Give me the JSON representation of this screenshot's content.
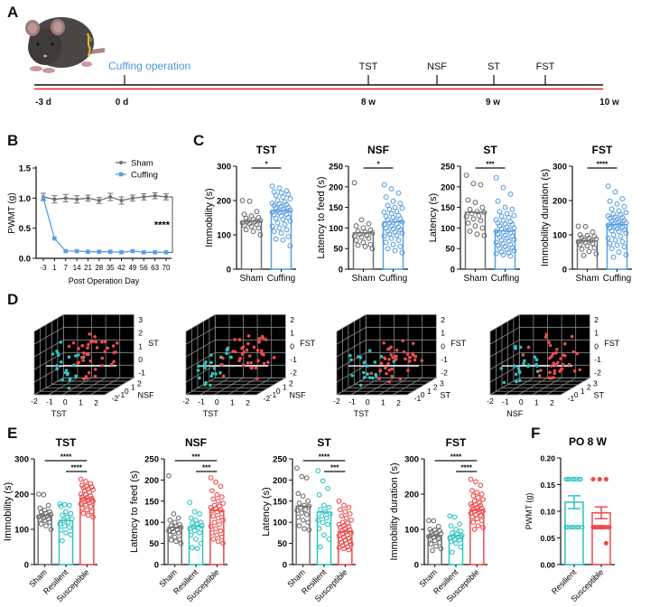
{
  "panels": {
    "A": "A",
    "B": "B",
    "C": "C",
    "D": "D",
    "E": "E",
    "F": "F"
  },
  "colors": {
    "sham": "#6e6e6e",
    "cuffing": "#5b9fe0",
    "resilient": "#2ec4c0",
    "susceptible": "#ee4b4b",
    "timeline_red": "#d9262c",
    "cuffing_label": "#4a9ae0"
  },
  "timeline": {
    "title": "Cuffing operation",
    "events": [
      {
        "label": "TST",
        "at": "8 w"
      },
      {
        "label": "NSF",
        "at": "8.5 w"
      },
      {
        "label": "ST",
        "at": "9 w"
      },
      {
        "label": "FST",
        "at": "9.5 w"
      }
    ],
    "axis_labels": [
      "-3 d",
      "0 d",
      "8 w",
      "9 w",
      "10 w"
    ]
  },
  "chart_data": [
    {
      "id": "B",
      "type": "line",
      "title": "",
      "xlabel": "Post Operation Day",
      "ylabel": "PWMT (g)",
      "categories": [
        "-3",
        "1",
        "7",
        "14",
        "21",
        "28",
        "35",
        "42",
        "49",
        "56",
        "63",
        "70"
      ],
      "ylim": [
        0,
        1.5
      ],
      "yticks": [
        "0.0",
        "0.5",
        "1.0",
        "1.5"
      ],
      "legend": "top-right",
      "significance": "****",
      "series": [
        {
          "name": "Sham",
          "values": [
            1.02,
            0.98,
            1.0,
            0.98,
            1.0,
            0.96,
            1.02,
            0.96,
            1.0,
            1.02,
            1.04,
            1.02
          ],
          "err": [
            0.06,
            0.06,
            0.06,
            0.06,
            0.05,
            0.05,
            0.06,
            0.06,
            0.05,
            0.05,
            0.05,
            0.05
          ]
        },
        {
          "name": "Cuffing",
          "values": [
            1.0,
            0.33,
            0.12,
            0.12,
            0.11,
            0.11,
            0.11,
            0.1,
            0.12,
            0.1,
            0.1,
            0.1
          ],
          "err": [
            0,
            0,
            0,
            0,
            0,
            0,
            0,
            0,
            0,
            0,
            0,
            0
          ]
        }
      ]
    },
    {
      "id": "C1",
      "type": "bar",
      "title": "TST",
      "ylabel": "Immobility (s)",
      "categories": [
        "Sham",
        "Cuffing"
      ],
      "ylim": [
        0,
        300
      ],
      "yticks": [
        "0",
        "100",
        "200",
        "300"
      ],
      "values": [
        140,
        170
      ],
      "significance": [
        {
          "pair": [
            0,
            1
          ],
          "label": "*"
        }
      ],
      "points": [
        [
          200,
          198,
          168,
          160,
          155,
          150,
          148,
          145,
          142,
          140,
          138,
          135,
          132,
          130,
          128,
          125,
          120,
          115,
          110,
          100
        ],
        [
          242,
          236,
          228,
          225,
          222,
          218,
          215,
          210,
          205,
          200,
          196,
          192,
          190,
          188,
          185,
          182,
          180,
          178,
          175,
          172,
          170,
          168,
          166,
          164,
          160,
          158,
          155,
          150,
          148,
          145,
          140,
          135,
          130,
          125,
          120,
          115,
          110,
          105,
          95,
          88,
          85,
          68
        ]
      ]
    },
    {
      "id": "C2",
      "type": "bar",
      "title": "NSF",
      "ylabel": "Latency to feed (s)",
      "categories": [
        "Sham",
        "Cuffing"
      ],
      "ylim": [
        0,
        250
      ],
      "yticks": [
        "0",
        "50",
        "100",
        "150",
        "200",
        "250"
      ],
      "values": [
        88,
        115
      ],
      "significance": [
        {
          "pair": [
            0,
            1
          ],
          "label": "*"
        }
      ],
      "points": [
        [
          210,
          120,
          110,
          105,
          100,
          95,
          92,
          90,
          88,
          85,
          82,
          80,
          78,
          75,
          70,
          65,
          60,
          58,
          55,
          50
        ],
        [
          205,
          195,
          185,
          175,
          165,
          160,
          155,
          150,
          148,
          145,
          140,
          138,
          135,
          130,
          128,
          125,
          122,
          120,
          118,
          115,
          112,
          110,
          108,
          105,
          102,
          100,
          98,
          95,
          92,
          90,
          88,
          85,
          82,
          80,
          75,
          70,
          65,
          60,
          55,
          50,
          45,
          40
        ]
      ]
    },
    {
      "id": "C3",
      "type": "bar",
      "title": "ST",
      "ylabel": "Latency (s)",
      "categories": [
        "Sham",
        "Cuffing"
      ],
      "ylim": [
        0,
        250
      ],
      "yticks": [
        "0",
        "50",
        "100",
        "150",
        "200",
        "250"
      ],
      "values": [
        138,
        93
      ],
      "significance": [
        {
          "pair": [
            0,
            1
          ],
          "label": "***"
        }
      ],
      "points": [
        [
          228,
          208,
          205,
          168,
          162,
          150,
          145,
          140,
          138,
          135,
          130,
          128,
          122,
          118,
          112,
          105,
          100,
          92,
          85,
          82
        ],
        [
          222,
          198,
          182,
          165,
          150,
          145,
          140,
          135,
          130,
          128,
          125,
          120,
          118,
          115,
          112,
          110,
          108,
          105,
          102,
          100,
          98,
          95,
          92,
          90,
          88,
          85,
          82,
          80,
          78,
          75,
          72,
          70,
          68,
          65,
          62,
          60,
          58,
          55,
          52,
          50,
          48,
          45,
          42,
          40,
          38,
          35,
          32
        ]
      ]
    },
    {
      "id": "C4",
      "type": "bar",
      "title": "FST",
      "ylabel": "Immobility duration (s)",
      "categories": [
        "Sham",
        "Cuffing"
      ],
      "ylim": [
        0,
        300
      ],
      "yticks": [
        "0",
        "100",
        "200",
        "300"
      ],
      "values": [
        82,
        130
      ],
      "significance": [
        {
          "pair": [
            0,
            1
          ],
          "label": "****"
        }
      ],
      "points": [
        [
          125,
          124,
          108,
          100,
          98,
          95,
          92,
          90,
          88,
          85,
          82,
          80,
          78,
          75,
          72,
          68,
          62,
          58,
          52,
          45,
          40
        ],
        [
          242,
          225,
          205,
          198,
          190,
          182,
          175,
          170,
          165,
          160,
          158,
          155,
          152,
          150,
          148,
          145,
          142,
          140,
          138,
          135,
          132,
          130,
          128,
          125,
          122,
          120,
          118,
          115,
          112,
          110,
          105,
          100,
          95,
          90,
          85,
          80,
          75,
          70,
          65,
          60,
          50,
          42,
          35
        ]
      ]
    },
    {
      "id": "D1",
      "type": "scatter",
      "title": "",
      "xlabel": "TST",
      "ylabel": "NSF",
      "zlabel": "ST",
      "xticks": [
        "-2",
        "-1",
        "0",
        "1",
        "2"
      ],
      "yticks": [
        "-2",
        "-1",
        "0",
        "1",
        "2"
      ],
      "zticks": [
        "-1",
        "0",
        "1",
        "2",
        "3"
      ]
    },
    {
      "id": "D2",
      "type": "scatter",
      "title": "",
      "xlabel": "TST",
      "ylabel": "NSF",
      "zlabel": "FST",
      "xticks": [
        "-2",
        "-1",
        "0",
        "1",
        "2"
      ],
      "yticks": [
        "-2",
        "-1",
        "0",
        "1",
        "2"
      ],
      "zticks": [
        "-2",
        "-1",
        "0",
        "1",
        "2"
      ]
    },
    {
      "id": "D3",
      "type": "scatter",
      "title": "",
      "xlabel": "TST",
      "ylabel": "ST",
      "zlabel": "FST",
      "xticks": [
        "-2",
        "-1",
        "0",
        "1",
        "2"
      ],
      "yticks": [
        "-1",
        "0",
        "1",
        "2",
        "3"
      ],
      "zticks": [
        "-2",
        "-1",
        "0",
        "1",
        "2"
      ]
    },
    {
      "id": "D4",
      "type": "scatter",
      "title": "",
      "xlabel": "NSF",
      "ylabel": "ST",
      "zlabel": "FST",
      "xticks": [
        "-2",
        "-1",
        "0",
        "1",
        "2"
      ],
      "yticks": [
        "-1",
        "0",
        "1",
        "2",
        "3"
      ],
      "zticks": [
        "-2",
        "-1",
        "0",
        "1",
        "2"
      ]
    },
    {
      "id": "E1",
      "type": "bar",
      "title": "TST",
      "ylabel": "Immobility (s)",
      "categories": [
        "Sham",
        "Resilient",
        "Susceptible"
      ],
      "ylim": [
        0,
        300
      ],
      "yticks": [
        "0",
        "100",
        "200",
        "300"
      ],
      "values": [
        140,
        125,
        188
      ],
      "significance": [
        {
          "pair": [
            0,
            2
          ],
          "label": "****"
        },
        {
          "pair": [
            1,
            2
          ],
          "label": "****"
        }
      ],
      "points": [
        [
          200,
          198,
          168,
          160,
          155,
          150,
          148,
          145,
          142,
          140,
          138,
          135,
          132,
          130,
          128,
          125,
          120,
          115,
          110,
          100
        ],
        [
          172,
          170,
          168,
          165,
          150,
          145,
          140,
          135,
          130,
          125,
          120,
          115,
          110,
          105,
          98,
          90,
          85,
          68
        ],
        [
          242,
          236,
          230,
          225,
          222,
          220,
          218,
          215,
          212,
          210,
          205,
          200,
          198,
          195,
          192,
          190,
          188,
          185,
          182,
          180,
          178,
          175,
          172,
          170,
          165,
          160,
          155,
          150,
          145,
          140,
          135
        ]
      ]
    },
    {
      "id": "E2",
      "type": "bar",
      "title": "NSF",
      "ylabel": "Latency to feed (s)",
      "categories": [
        "Sham",
        "Resilient",
        "Susceptible"
      ],
      "ylim": [
        0,
        250
      ],
      "yticks": [
        "0",
        "50",
        "100",
        "150",
        "200",
        "250"
      ],
      "values": [
        88,
        90,
        128
      ],
      "significance": [
        {
          "pair": [
            0,
            2
          ],
          "label": "***"
        },
        {
          "pair": [
            1,
            2
          ],
          "label": "***"
        }
      ],
      "points": [
        [
          210,
          120,
          110,
          105,
          100,
          95,
          92,
          90,
          88,
          85,
          82,
          80,
          78,
          75,
          70,
          65,
          60,
          58,
          55,
          50
        ],
        [
          147,
          125,
          120,
          110,
          105,
          100,
          98,
          95,
          92,
          90,
          88,
          85,
          80,
          75,
          70,
          60,
          50,
          40,
          38
        ],
        [
          205,
          195,
          185,
          175,
          165,
          160,
          155,
          150,
          145,
          140,
          138,
          135,
          132,
          130,
          128,
          125,
          120,
          115,
          110,
          105,
          100,
          95,
          90,
          85,
          80,
          75,
          70,
          65,
          60,
          55,
          50
        ]
      ]
    },
    {
      "id": "E3",
      "type": "bar",
      "title": "ST",
      "ylabel": "Latency (s)",
      "categories": [
        "Sham",
        "Resilient",
        "Susceptible"
      ],
      "ylim": [
        0,
        250
      ],
      "yticks": [
        "0",
        "50",
        "100",
        "150",
        "200",
        "250"
      ],
      "values": [
        138,
        124,
        78
      ],
      "significance": [
        {
          "pair": [
            0,
            2
          ],
          "label": "****"
        },
        {
          "pair": [
            1,
            2
          ],
          "label": "***"
        }
      ],
      "points": [
        [
          228,
          208,
          205,
          168,
          162,
          150,
          145,
          140,
          138,
          135,
          130,
          128,
          122,
          118,
          112,
          105,
          100,
          92,
          85,
          82
        ],
        [
          222,
          198,
          180,
          165,
          140,
          135,
          130,
          125,
          120,
          115,
          110,
          105,
          100,
          95,
          85,
          70,
          60,
          42
        ],
        [
          150,
          140,
          135,
          130,
          125,
          120,
          115,
          110,
          105,
          100,
          98,
          95,
          92,
          90,
          88,
          85,
          82,
          80,
          78,
          75,
          72,
          70,
          68,
          65,
          62,
          60,
          58,
          55,
          52,
          50,
          48,
          45,
          42,
          40,
          38,
          35
        ]
      ]
    },
    {
      "id": "E4",
      "type": "bar",
      "title": "FST",
      "ylabel": "Immobility duration (s)",
      "categories": [
        "Sham",
        "Resilient",
        "Susceptible"
      ],
      "ylim": [
        0,
        300
      ],
      "yticks": [
        "0",
        "100",
        "200",
        "300"
      ],
      "values": [
        82,
        82,
        155
      ],
      "significance": [
        {
          "pair": [
            0,
            2
          ],
          "label": "****"
        },
        {
          "pair": [
            1,
            2
          ],
          "label": "****"
        }
      ],
      "points": [
        [
          125,
          124,
          108,
          100,
          98,
          95,
          92,
          90,
          88,
          85,
          82,
          80,
          78,
          75,
          72,
          68,
          62,
          58,
          52,
          45,
          40
        ],
        [
          138,
          135,
          115,
          110,
          100,
          95,
          90,
          85,
          82,
          80,
          78,
          75,
          72,
          70,
          65,
          60,
          50,
          35
        ],
        [
          242,
          235,
          225,
          210,
          205,
          200,
          195,
          190,
          185,
          180,
          175,
          172,
          170,
          168,
          165,
          162,
          160,
          158,
          155,
          152,
          150,
          148,
          145,
          142,
          140,
          135,
          130,
          125,
          120,
          110,
          105,
          100
        ]
      ]
    },
    {
      "id": "F",
      "type": "bar",
      "title": "PO 8 W",
      "ylabel": "PWMT  (g)",
      "categories": [
        "Resilient",
        "Susceptible"
      ],
      "ylim": [
        0,
        0.2
      ],
      "yticks": [
        "0.00",
        "0.05",
        "0.10",
        "0.15",
        "0.20"
      ],
      "values": [
        0.117,
        0.097
      ],
      "err": [
        0.012,
        0.011
      ],
      "points": [
        [
          0.16,
          0.16,
          0.16,
          0.16,
          0.16,
          0.16,
          0.16,
          0.16,
          0.07,
          0.07,
          0.07,
          0.07,
          0.07,
          0.07,
          0.07,
          0.07
        ],
        [
          0.16,
          0.16,
          0.16,
          0.07,
          0.07,
          0.07,
          0.07,
          0.07,
          0.07,
          0.07,
          0.07,
          0.07,
          0.07,
          0.04
        ]
      ]
    }
  ]
}
